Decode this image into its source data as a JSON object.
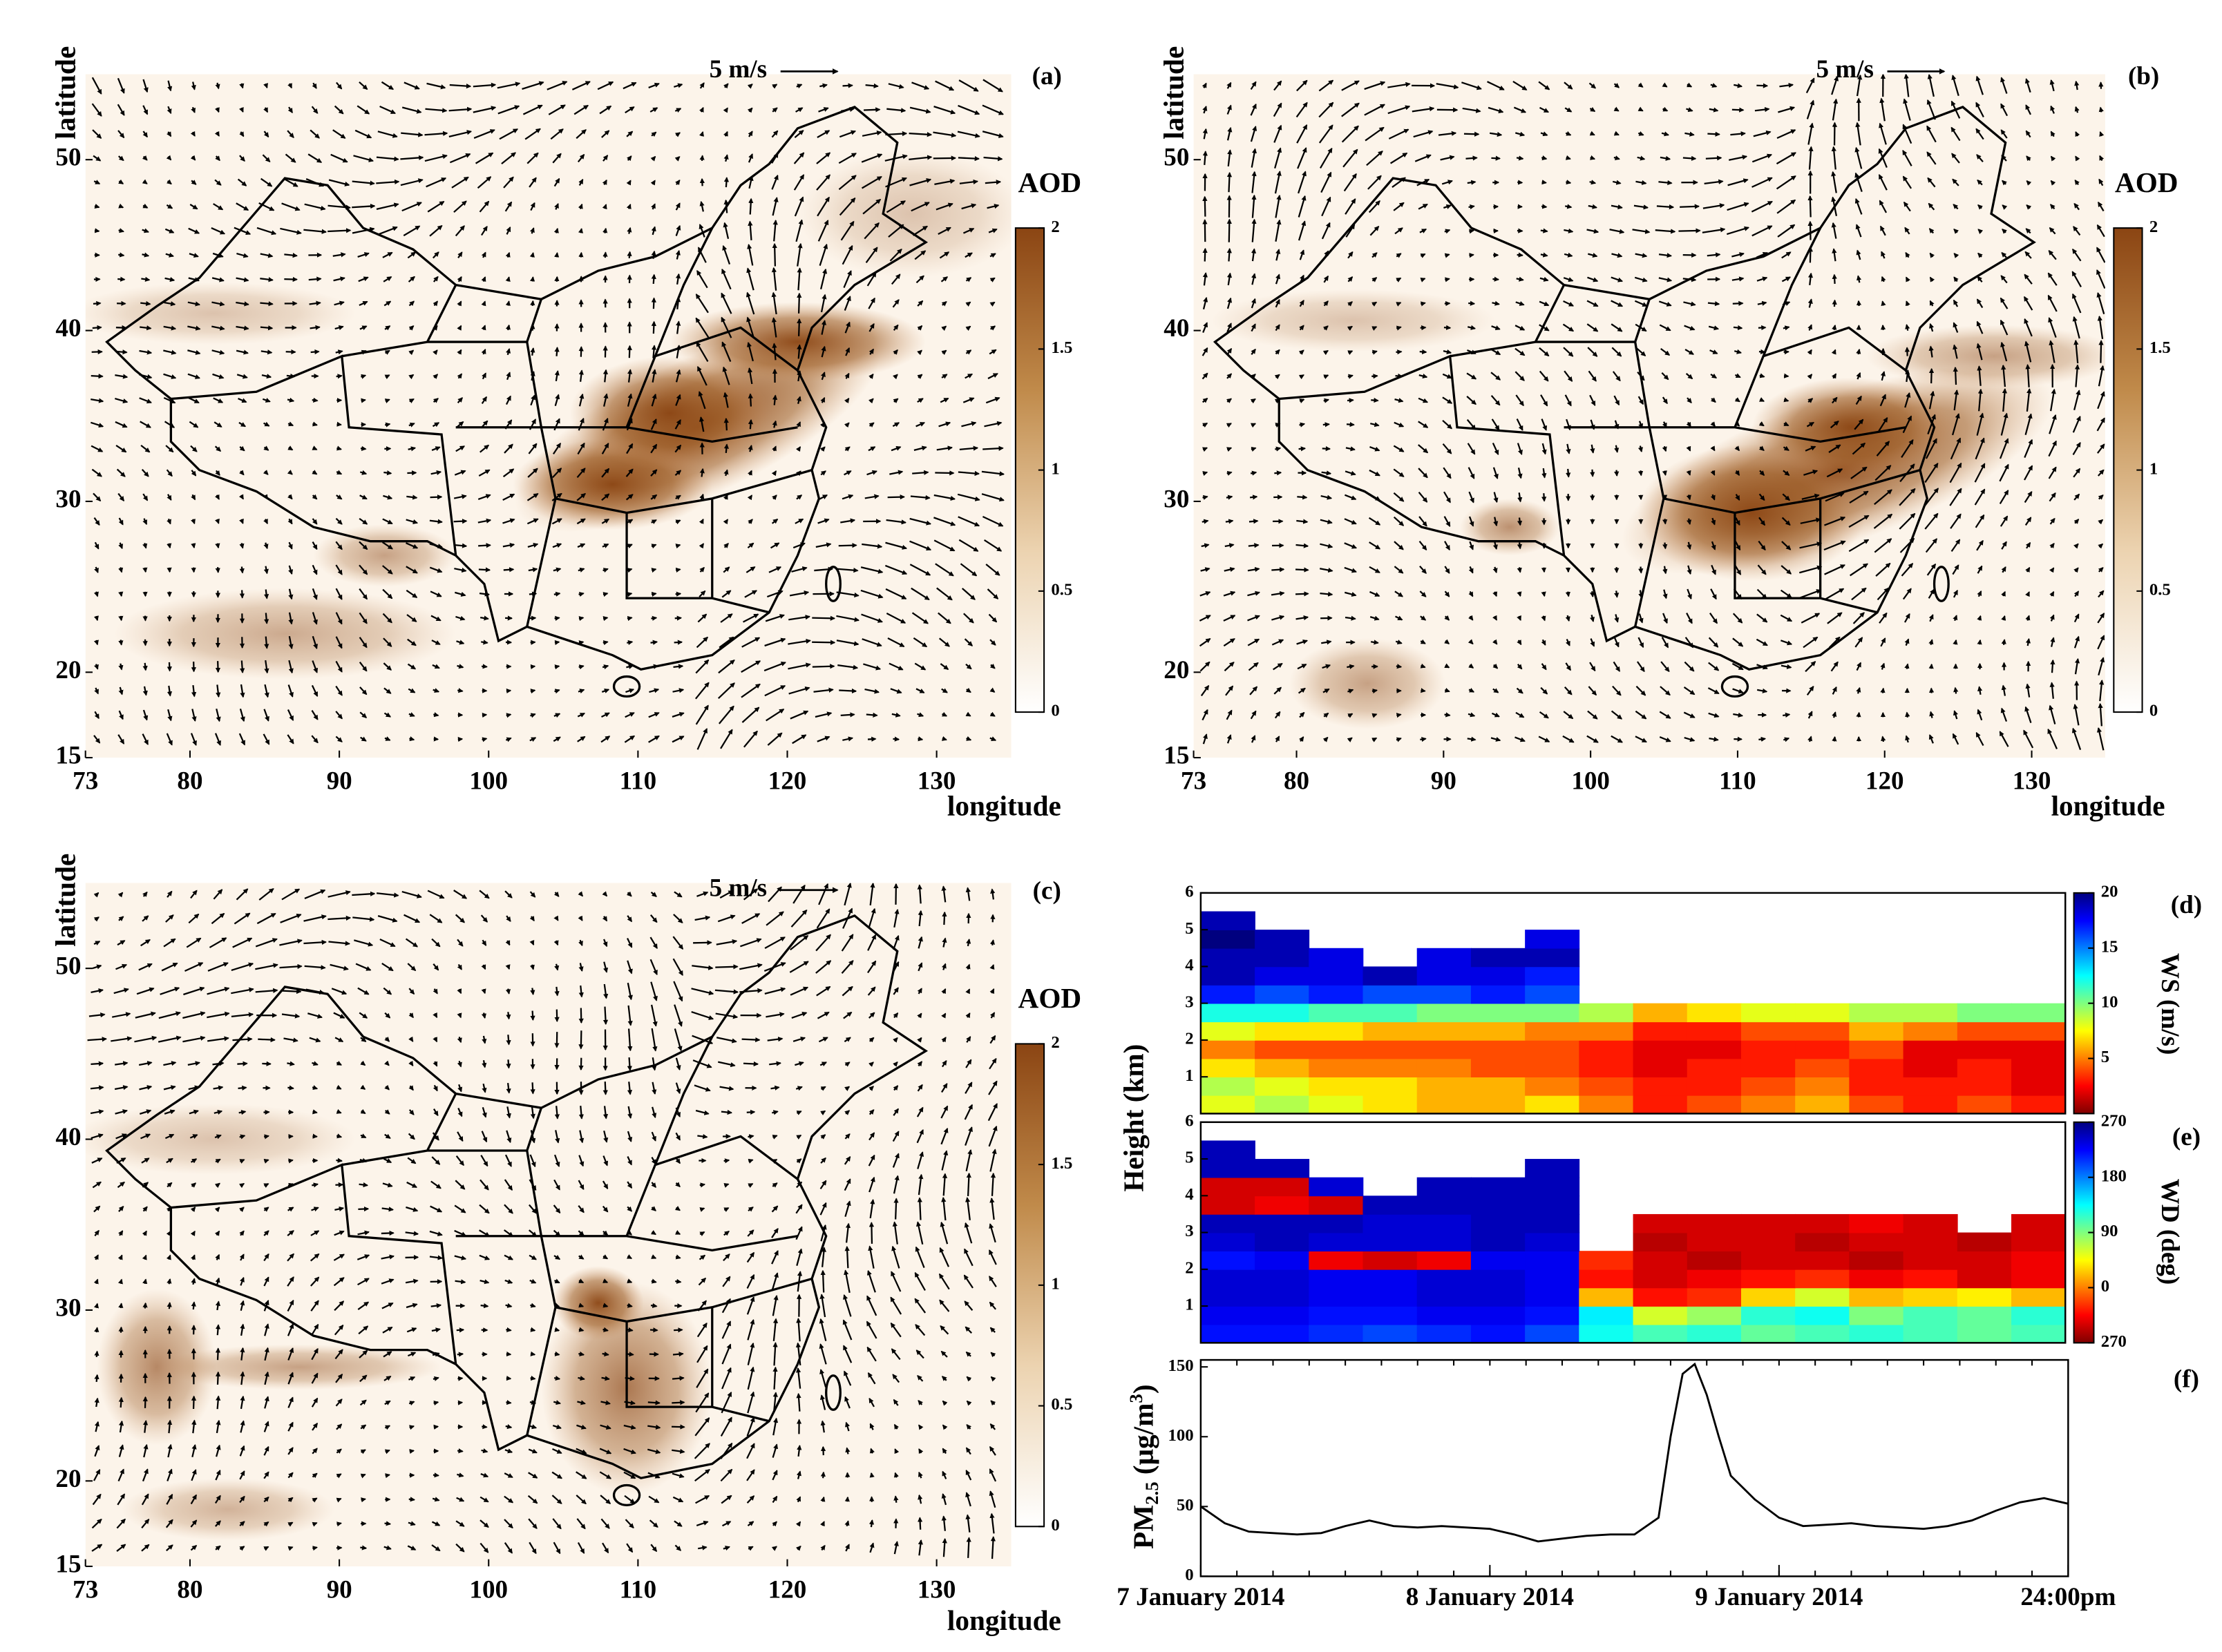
{
  "chart_data": [
    {
      "type": "map",
      "panel_label": "(a)",
      "xlabel": "longitude",
      "ylabel": "latitude",
      "scale_label": "5 m/s",
      "xlim": [
        73,
        135
      ],
      "ylim": [
        15,
        55
      ],
      "xticks": [
        73,
        80,
        90,
        100,
        110,
        120,
        130
      ],
      "yticks": [
        15,
        20,
        30,
        40,
        50
      ],
      "colorbar": {
        "label": "AOD",
        "lim": [
          0,
          2
        ],
        "ticks": [
          0,
          0.5,
          1,
          1.5,
          2
        ],
        "colormap": [
          "#ffffff",
          "#ecd3b0",
          "#c08a4a",
          "#8b4513"
        ]
      }
    },
    {
      "type": "map",
      "panel_label": "(b)",
      "xlabel": "longitude",
      "ylabel": "latitude",
      "scale_label": "5 m/s",
      "xlim": [
        73,
        135
      ],
      "ylim": [
        15,
        55
      ],
      "xticks": [
        73,
        80,
        90,
        100,
        110,
        120,
        130
      ],
      "yticks": [
        15,
        20,
        30,
        40,
        50
      ],
      "colorbar": {
        "label": "AOD",
        "lim": [
          0,
          2
        ],
        "ticks": [
          0,
          0.5,
          1,
          1.5,
          2
        ],
        "colormap": [
          "#ffffff",
          "#ecd3b0",
          "#c08a4a",
          "#8b4513"
        ]
      }
    },
    {
      "type": "map",
      "panel_label": "(c)",
      "xlabel": "longitude",
      "ylabel": "latitude",
      "scale_label": "5 m/s",
      "xlim": [
        73,
        135
      ],
      "ylim": [
        15,
        55
      ],
      "xticks": [
        73,
        80,
        90,
        100,
        110,
        120,
        130
      ],
      "yticks": [
        15,
        20,
        30,
        40,
        50
      ],
      "colorbar": {
        "label": "AOD",
        "lim": [
          0,
          2
        ],
        "ticks": [
          0,
          0.5,
          1,
          1.5,
          2
        ],
        "colormap": [
          "#ffffff",
          "#ecd3b0",
          "#c08a4a",
          "#8b4513"
        ]
      }
    },
    {
      "type": "heatmap",
      "panel_label": "(d)",
      "ylabel": "Height (km)",
      "ylim": [
        0,
        6
      ],
      "yticks": [
        1,
        2,
        3,
        4,
        5,
        6
      ],
      "colorbar": {
        "label": "WS (m/s)",
        "lim": [
          0,
          20
        ],
        "ticks": [
          5,
          10,
          15,
          20
        ],
        "colormap": [
          "#7f0000",
          "#ff0000",
          "#ff7f00",
          "#ffff00",
          "#7fff7f",
          "#00ffff",
          "#007fff",
          "#0000ff",
          "#00007f"
        ]
      },
      "z": [
        [
          8,
          9,
          8,
          7,
          6,
          6,
          7,
          5,
          3,
          4,
          5,
          6,
          4,
          3,
          4,
          3
        ],
        [
          9,
          8,
          7,
          7,
          6,
          6,
          5,
          4,
          3,
          3,
          4,
          5,
          3,
          3,
          3,
          2
        ],
        [
          7,
          6,
          5,
          5,
          5,
          4,
          4,
          3,
          2,
          3,
          3,
          4,
          3,
          2,
          3,
          2
        ],
        [
          5,
          4,
          4,
          4,
          4,
          4,
          4,
          3,
          2,
          2,
          3,
          3,
          4,
          2,
          2,
          2
        ],
        [
          8,
          7,
          7,
          6,
          6,
          6,
          5,
          5,
          3,
          3,
          4,
          4,
          6,
          5,
          4,
          4
        ],
        [
          12,
          12,
          11,
          11,
          10,
          10,
          10,
          9,
          6,
          7,
          8,
          8,
          9,
          9,
          10,
          10
        ],
        [
          17,
          16,
          17,
          16,
          16,
          17,
          16,
          null,
          null,
          null,
          null,
          null,
          null,
          null,
          null,
          null
        ],
        [
          19,
          18,
          18,
          19,
          18,
          18,
          17,
          null,
          null,
          null,
          null,
          null,
          null,
          null,
          null,
          null
        ],
        [
          19,
          19,
          18,
          null,
          18,
          19,
          19,
          null,
          null,
          null,
          null,
          null,
          null,
          null,
          null,
          null
        ],
        [
          20,
          19,
          null,
          null,
          null,
          null,
          18,
          null,
          null,
          null,
          null,
          null,
          null,
          null,
          null,
          null
        ],
        [
          19,
          null,
          null,
          null,
          null,
          null,
          null,
          null,
          null,
          null,
          null,
          null,
          null,
          null,
          null,
          null
        ],
        [
          null,
          null,
          null,
          null,
          null,
          null,
          null,
          null,
          null,
          null,
          null,
          null,
          null,
          null,
          null,
          null
        ]
      ]
    },
    {
      "type": "heatmap",
      "panel_label": "(e)",
      "ylim": [
        0,
        6
      ],
      "yticks": [
        1,
        2,
        3,
        4,
        5,
        6
      ],
      "colorbar": {
        "label": "WD (deg)",
        "lim": [
          -90,
          270
        ],
        "ticks": [
          {
            "value": -90,
            "label": "270"
          },
          0,
          90,
          180,
          270
        ],
        "colormap": [
          "#7f0000",
          "#ff0000",
          "#ff7f00",
          "#ffff00",
          "#7fff7f",
          "#00ffff",
          "#007fff",
          "#0000ff",
          "#00007f"
        ]
      },
      "z": [
        [
          220,
          220,
          210,
          200,
          210,
          220,
          200,
          130,
          110,
          120,
          100,
          110,
          120,
          110,
          100,
          110
        ],
        [
          230,
          230,
          220,
          220,
          230,
          230,
          220,
          140,
          60,
          80,
          120,
          130,
          90,
          110,
          100,
          120
        ],
        [
          240,
          240,
          230,
          230,
          240,
          240,
          230,
          20,
          -40,
          -30,
          30,
          60,
          20,
          30,
          40,
          20
        ],
        [
          240,
          240,
          230,
          230,
          240,
          240,
          230,
          -40,
          -60,
          -50,
          -40,
          -30,
          -50,
          -40,
          -60,
          -50
        ],
        [
          220,
          230,
          -50,
          -60,
          -50,
          230,
          230,
          -30,
          -60,
          -70,
          -60,
          -60,
          -70,
          -60,
          -60,
          -50
        ],
        [
          240,
          250,
          240,
          240,
          240,
          250,
          240,
          null,
          -70,
          -60,
          -60,
          -70,
          -60,
          -60,
          -70,
          -60
        ],
        [
          250,
          250,
          250,
          240,
          240,
          250,
          250,
          null,
          -60,
          -60,
          -60,
          -60,
          -50,
          -60,
          null,
          -60
        ],
        [
          -60,
          -50,
          -60,
          250,
          250,
          250,
          250,
          null,
          null,
          null,
          null,
          null,
          null,
          null,
          null,
          null
        ],
        [
          -60,
          -60,
          240,
          null,
          250,
          250,
          250,
          null,
          null,
          null,
          null,
          null,
          null,
          null,
          null,
          null
        ],
        [
          250,
          250,
          null,
          null,
          null,
          null,
          250,
          null,
          null,
          null,
          null,
          null,
          null,
          null,
          null,
          null
        ],
        [
          250,
          null,
          null,
          null,
          null,
          null,
          null,
          null,
          null,
          null,
          null,
          null,
          null,
          null,
          null,
          null
        ],
        [
          null,
          null,
          null,
          null,
          null,
          null,
          null,
          null,
          null,
          null,
          null,
          null,
          null,
          null,
          null,
          null
        ]
      ]
    },
    {
      "type": "line",
      "panel_label": "(f)",
      "ylabel": [
        "PM",
        "2.5",
        " (μg/m",
        "3",
        ")"
      ],
      "color": "#000000",
      "xlim": [
        0,
        72
      ],
      "xticks": [
        {
          "value": 0,
          "label": "7 January 2014"
        },
        {
          "value": 24,
          "label": "8 January 2014"
        },
        {
          "value": 48,
          "label": "9 January 2014"
        },
        {
          "value": 72,
          "label": "24:00pm"
        }
      ],
      "ylim": [
        0,
        155
      ],
      "yticks": [
        0,
        50,
        100,
        150
      ],
      "x": [
        0,
        2,
        4,
        6,
        8,
        10,
        12,
        14,
        16,
        18,
        20,
        22,
        24,
        26,
        28,
        30,
        32,
        34,
        36,
        38,
        39,
        40,
        41,
        42,
        43,
        44,
        46,
        48,
        50,
        52,
        54,
        56,
        58,
        60,
        62,
        64,
        66,
        68,
        70,
        72
      ],
      "values": [
        50,
        38,
        32,
        31,
        30,
        31,
        36,
        40,
        36,
        35,
        36,
        35,
        34,
        30,
        25,
        27,
        29,
        30,
        30,
        42,
        100,
        145,
        152,
        130,
        100,
        72,
        55,
        42,
        36,
        37,
        38,
        36,
        35,
        34,
        36,
        40,
        47,
        53,
        56,
        52
      ]
    }
  ]
}
